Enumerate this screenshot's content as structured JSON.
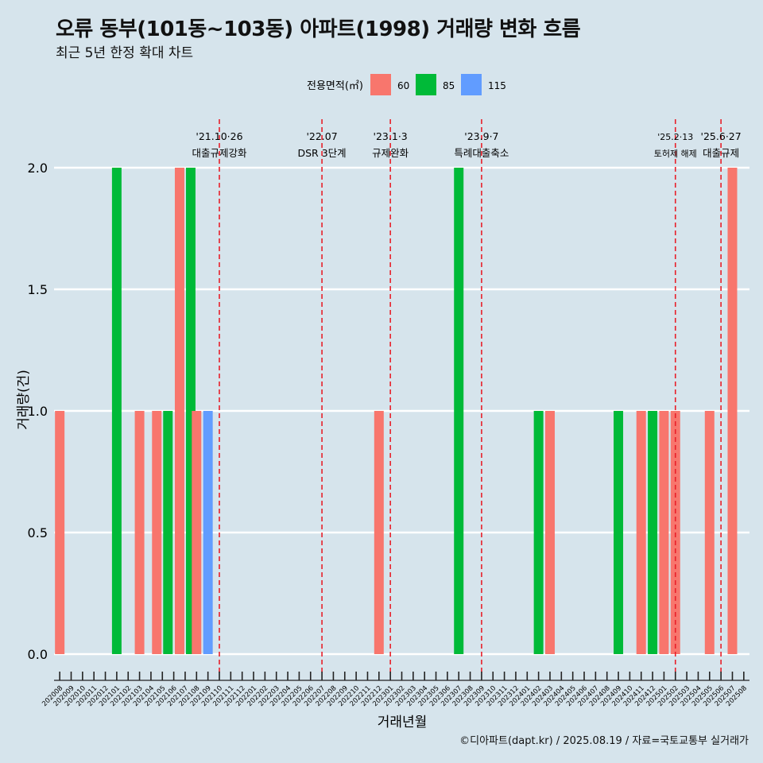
{
  "title": "오류 동부(101동~103동) 아파트(1998) 거래량 변화 흐름",
  "subtitle": "최근 5년 한정 확대 차트",
  "caption": "©디아파트(dapt.kr) / 2025.08.19 / 자료=국토교통부 실거래가",
  "colors": {
    "background": "#d6e4ec",
    "grid": "#ffffff",
    "event_line": "#e8202a"
  },
  "chart_data": {
    "type": "bar",
    "xlabel": "거래년월",
    "ylabel": "거래량(건)",
    "ylim": [
      0,
      2
    ],
    "yticks": [
      0.0,
      0.5,
      1.0,
      1.5,
      2.0
    ],
    "yticklabels": [
      "0.0",
      "0.5",
      "1.0",
      "1.5",
      "2.0"
    ],
    "grid": true,
    "legend": {
      "title": "전용면적(㎡)",
      "position": "top"
    },
    "categories": [
      "202008",
      "202009",
      "202010",
      "202011",
      "202012",
      "202101",
      "202102",
      "202103",
      "202104",
      "202105",
      "202106",
      "202107",
      "202108",
      "202109",
      "202110",
      "202111",
      "202112",
      "202201",
      "202202",
      "202203",
      "202204",
      "202205",
      "202206",
      "202207",
      "202208",
      "202209",
      "202210",
      "202211",
      "202212",
      "202301",
      "202302",
      "202303",
      "202304",
      "202305",
      "202306",
      "202307",
      "202308",
      "202309",
      "202310",
      "202311",
      "202312",
      "202401",
      "202402",
      "202403",
      "202404",
      "202405",
      "202406",
      "202407",
      "202408",
      "202409",
      "202410",
      "202411",
      "202412",
      "202501",
      "202502",
      "202503",
      "202504",
      "202505",
      "202506",
      "202507",
      "202508"
    ],
    "series": [
      {
        "name": "60",
        "color": "#f8766d",
        "points": [
          {
            "x": "202008",
            "y": 1
          },
          {
            "x": "202103",
            "y": 1
          },
          {
            "x": "202105",
            "y": 1
          },
          {
            "x": "202107",
            "y": 2
          },
          {
            "x": "202108",
            "y": 1
          },
          {
            "x": "202212",
            "y": 1
          },
          {
            "x": "202403",
            "y": 1
          },
          {
            "x": "202411",
            "y": 1
          },
          {
            "x": "202501",
            "y": 1
          },
          {
            "x": "202502",
            "y": 1
          },
          {
            "x": "202505",
            "y": 1
          },
          {
            "x": "202507",
            "y": 2
          }
        ]
      },
      {
        "name": "85",
        "color": "#00ba38",
        "points": [
          {
            "x": "202101",
            "y": 2
          },
          {
            "x": "202105",
            "y": 1
          },
          {
            "x": "202107",
            "y": 2
          },
          {
            "x": "202307",
            "y": 2
          },
          {
            "x": "202402",
            "y": 1
          },
          {
            "x": "202409",
            "y": 1
          },
          {
            "x": "202412",
            "y": 1
          }
        ]
      },
      {
        "name": "115",
        "color": "#619cff",
        "points": [
          {
            "x": "202109",
            "y": 1
          }
        ]
      }
    ],
    "events": [
      {
        "date": "'21.10·26",
        "label": "대출규제강화",
        "after": "202110"
      },
      {
        "date": "'22.07",
        "label": "DSR 3단계",
        "after": "202207"
      },
      {
        "date": "'23.1·3",
        "label": "규제완화",
        "after": "202301"
      },
      {
        "date": "'23.9·7",
        "label": "특례대출축소",
        "after": "202309"
      },
      {
        "date": "'25.2·13",
        "label": "토허제 해제",
        "after": "202502"
      },
      {
        "date": "'25.6·27",
        "label": "대출규제",
        "after": "202506"
      }
    ]
  }
}
